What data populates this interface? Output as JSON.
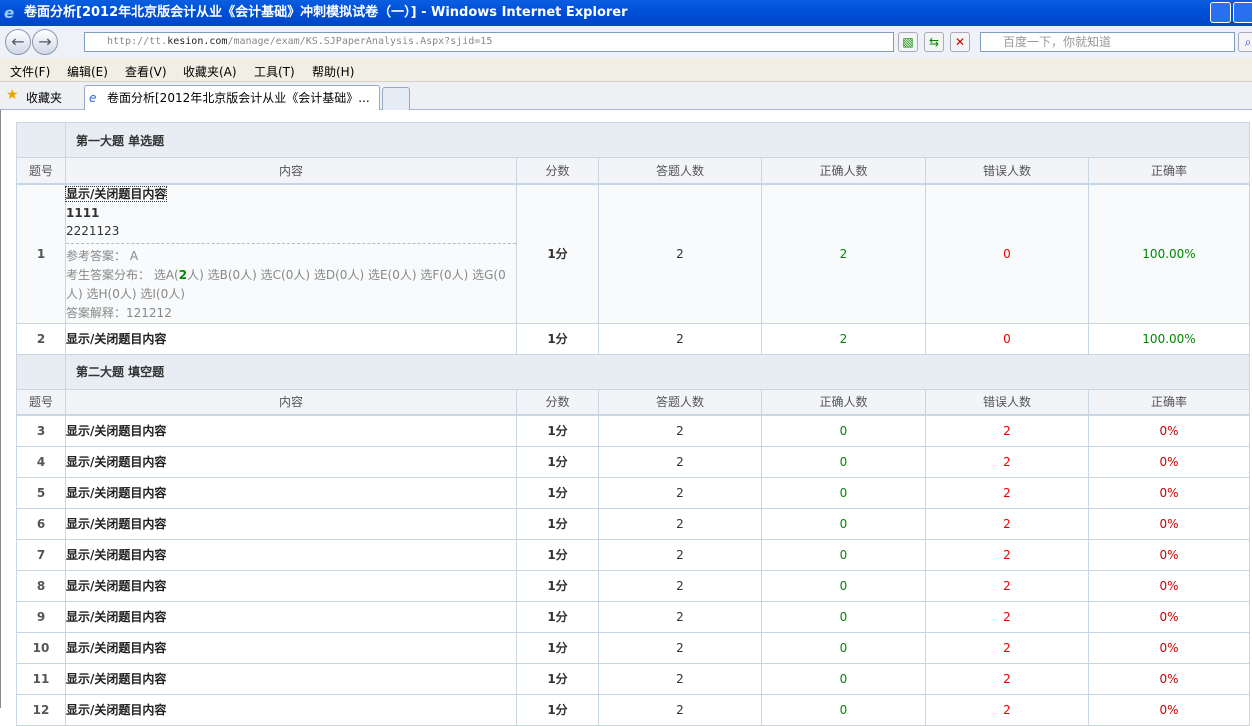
{
  "window": {
    "title": "卷面分析[2012年北京版会计从业《会计基础》冲刺模拟试卷（一）] - Windows Internet Explorer"
  },
  "address": {
    "url_prefix": "http://tt.",
    "url_domain": "kesion.com",
    "url_path": "/manage/exam/KS.SJPaperAnalysis.Aspx?sjid=15",
    "search_placeholder": "百度一下，你就知道"
  },
  "menu": [
    "文件(F)",
    "编辑(E)",
    "查看(V)",
    "收藏夹(A)",
    "工具(T)",
    "帮助(H)"
  ],
  "favorites": {
    "label": "收藏夹",
    "tab": "卷面分析[2012年北京版会计从业《会计基础》..."
  },
  "columns": [
    "题号",
    "内容",
    "分数",
    "答题人数",
    "正确人数",
    "错误人数",
    "正确率"
  ],
  "toggle_label": "显示/关闭题目内容",
  "sections": [
    {
      "title": "第一大题  单选题",
      "rows": [
        {
          "no": "1",
          "score": "1分",
          "answered": "2",
          "correct": "2",
          "wrong": "0",
          "rate": "100.00%",
          "expanded": true,
          "detail": {
            "title": "1111",
            "text": "2221123",
            "ref_label": "参考答案：",
            "ref": "A",
            "dist_label": "考生答案分布：",
            "dist": [
              [
                "选A(",
                "2",
                "人)"
              ],
              [
                "选B(",
                "0",
                "人)"
              ],
              [
                "选C(",
                "0",
                "人)"
              ],
              [
                "选D(",
                "0",
                "人)"
              ],
              [
                "选E(",
                "0",
                "人)"
              ],
              [
                "选F(",
                "0",
                "人)"
              ],
              [
                "选G(",
                "0",
                "人)"
              ],
              [
                "选H(",
                "0",
                "人)"
              ],
              [
                "选I(",
                "0",
                "人)"
              ]
            ],
            "exp_label": "答案解释：",
            "exp": "121212"
          }
        },
        {
          "no": "2",
          "score": "1分",
          "answered": "2",
          "correct": "2",
          "wrong": "0",
          "rate": "100.00%"
        }
      ]
    },
    {
      "title": "第二大题  填空题",
      "rows": [
        {
          "no": "3",
          "score": "1分",
          "answered": "2",
          "correct": "0",
          "wrong": "2",
          "rate": "0%"
        },
        {
          "no": "4",
          "score": "1分",
          "answered": "2",
          "correct": "0",
          "wrong": "2",
          "rate": "0%"
        },
        {
          "no": "5",
          "score": "1分",
          "answered": "2",
          "correct": "0",
          "wrong": "2",
          "rate": "0%"
        },
        {
          "no": "6",
          "score": "1分",
          "answered": "2",
          "correct": "0",
          "wrong": "2",
          "rate": "0%"
        },
        {
          "no": "7",
          "score": "1分",
          "answered": "2",
          "correct": "0",
          "wrong": "2",
          "rate": "0%"
        },
        {
          "no": "8",
          "score": "1分",
          "answered": "2",
          "correct": "0",
          "wrong": "2",
          "rate": "0%"
        },
        {
          "no": "9",
          "score": "1分",
          "answered": "2",
          "correct": "0",
          "wrong": "2",
          "rate": "0%"
        },
        {
          "no": "10",
          "score": "1分",
          "answered": "2",
          "correct": "0",
          "wrong": "2",
          "rate": "0%"
        },
        {
          "no": "11",
          "score": "1分",
          "answered": "2",
          "correct": "0",
          "wrong": "2",
          "rate": "0%"
        },
        {
          "no": "12",
          "score": "1分",
          "answered": "2",
          "correct": "0",
          "wrong": "2",
          "rate": "0%"
        }
      ]
    }
  ],
  "colors": {
    "correct": "#008800",
    "wrong": "#ee0000",
    "titlebar": "#0050d8"
  }
}
